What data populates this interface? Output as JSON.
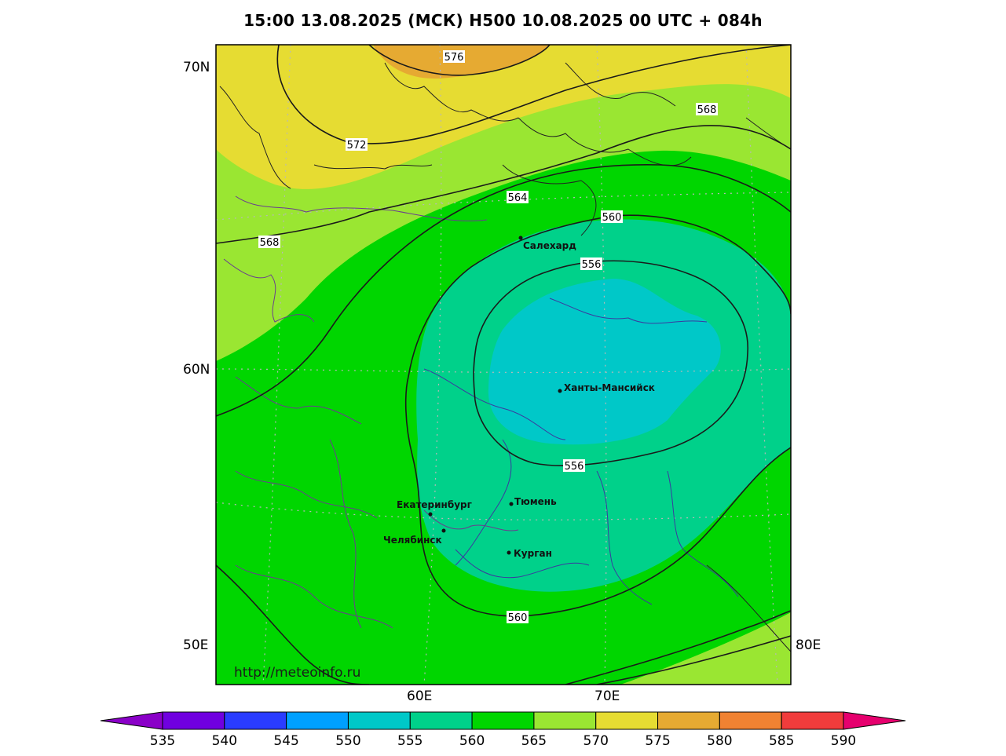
{
  "header": {
    "title": "15:00 13.08.2025 (МСК) H500  10.08.2025 00 UTC + 084h"
  },
  "axes": {
    "lat_labels": [
      "70N",
      "60N",
      "50E"
    ],
    "lon_labels": [
      "60E",
      "70E",
      "80E"
    ]
  },
  "contours": {
    "labels": [
      "576",
      "572",
      "568",
      "568",
      "564",
      "560",
      "556",
      "556",
      "560"
    ]
  },
  "cities": [
    {
      "name": "Салехард"
    },
    {
      "name": "Ханты-Мансийск"
    },
    {
      "name": "Екатеринбург"
    },
    {
      "name": "Тюмень"
    },
    {
      "name": "Челябинск"
    },
    {
      "name": "Курган"
    }
  ],
  "watermark": "http://meteoinfo.ru",
  "colorbar": {
    "ticks": [
      "535",
      "540",
      "545",
      "550",
      "555",
      "560",
      "565",
      "570",
      "575",
      "580",
      "585",
      "590"
    ],
    "colors": [
      "#8a00c8",
      "#7000e0",
      "#2a3cff",
      "#00a0ff",
      "#00c8c8",
      "#00d18a",
      "#00d600",
      "#9ae632",
      "#e6dc32",
      "#e6aa32",
      "#f08232",
      "#f03c3c",
      "#e6006e"
    ]
  },
  "fill_colors": {
    "c550": "#00c8c8",
    "c555": "#00d18a",
    "c560": "#00d600",
    "c565": "#9ae632",
    "c570": "#e6dc32",
    "c575": "#e6aa32"
  }
}
